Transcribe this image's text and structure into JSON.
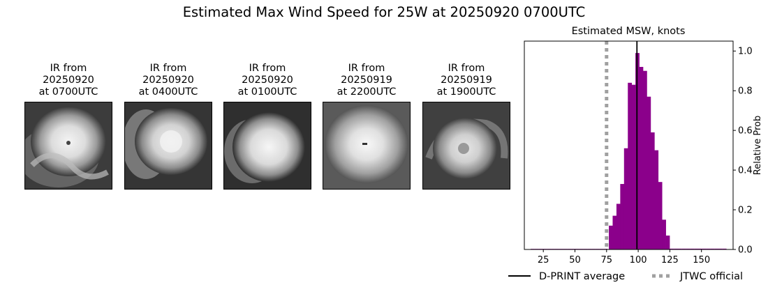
{
  "figure_title": "Estimated Max Wind Speed for 25W at 20250920 0700UTC",
  "ir_panels": [
    {
      "line1": "IR from",
      "line2": "20250920",
      "line3": "at 0700UTC"
    },
    {
      "line1": "IR from",
      "line2": "20250920",
      "line3": "at 0400UTC"
    },
    {
      "line1": "IR from",
      "line2": "20250920",
      "line3": "at 0100UTC"
    },
    {
      "line1": "IR from",
      "line2": "20250919",
      "line3": "at 2200UTC"
    },
    {
      "line1": "IR from",
      "line2": "20250919",
      "line3": "at 1900UTC"
    }
  ],
  "chart_data": {
    "type": "bar",
    "title": "Estimated MSW, knots",
    "xlabel": "",
    "ylabel": "Relative Prob",
    "xlim": [
      10,
      175
    ],
    "ylim": [
      0,
      1.05
    ],
    "xticks": [
      25,
      50,
      75,
      100,
      125,
      150
    ],
    "yticks": [
      0.0,
      0.2,
      0.4,
      0.6,
      0.8,
      1.0
    ],
    "ytick_labels": [
      "0.0",
      "0.2",
      "0.4",
      "0.6",
      "0.8",
      "1.0"
    ],
    "y_axis_side": "right",
    "bar_color": "#8b008b",
    "bin_width": 3.2,
    "bins": [
      {
        "x": 15,
        "y": 0.003
      },
      {
        "x": 18.2,
        "y": 0.003
      },
      {
        "x": 21.4,
        "y": 0.003
      },
      {
        "x": 24.6,
        "y": 0.003
      },
      {
        "x": 27.8,
        "y": 0.003
      },
      {
        "x": 31,
        "y": 0.003
      },
      {
        "x": 34.2,
        "y": 0.003
      },
      {
        "x": 37.4,
        "y": 0.003
      },
      {
        "x": 40.6,
        "y": 0.003
      },
      {
        "x": 43.8,
        "y": 0.003
      },
      {
        "x": 47,
        "y": 0.003
      },
      {
        "x": 50.2,
        "y": 0.003
      },
      {
        "x": 53.4,
        "y": 0.003
      },
      {
        "x": 56.6,
        "y": 0.003
      },
      {
        "x": 59.8,
        "y": 0.003
      },
      {
        "x": 63,
        "y": 0.003
      },
      {
        "x": 66.2,
        "y": 0.003
      },
      {
        "x": 69.4,
        "y": 0.003
      },
      {
        "x": 72.6,
        "y": 0.003
      },
      {
        "x": 76.8,
        "y": 0.12
      },
      {
        "x": 79.8,
        "y": 0.17
      },
      {
        "x": 82.8,
        "y": 0.23
      },
      {
        "x": 85.8,
        "y": 0.33
      },
      {
        "x": 88.8,
        "y": 0.51
      },
      {
        "x": 91.8,
        "y": 0.84
      },
      {
        "x": 94.8,
        "y": 0.83
      },
      {
        "x": 97.8,
        "y": 0.99
      },
      {
        "x": 100.8,
        "y": 0.92
      },
      {
        "x": 103.8,
        "y": 0.9
      },
      {
        "x": 106.8,
        "y": 0.77
      },
      {
        "x": 109.8,
        "y": 0.59
      },
      {
        "x": 112.8,
        "y": 0.5
      },
      {
        "x": 115.8,
        "y": 0.34
      },
      {
        "x": 118.8,
        "y": 0.15
      },
      {
        "x": 121.8,
        "y": 0.07
      },
      {
        "x": 125,
        "y": 0.004
      },
      {
        "x": 128.2,
        "y": 0.004
      },
      {
        "x": 131.4,
        "y": 0.004
      },
      {
        "x": 134.6,
        "y": 0.004
      },
      {
        "x": 137.8,
        "y": 0.004
      },
      {
        "x": 141,
        "y": 0.004
      },
      {
        "x": 144.2,
        "y": 0.004
      },
      {
        "x": 147.4,
        "y": 0.004
      },
      {
        "x": 150.6,
        "y": 0.004
      },
      {
        "x": 153.8,
        "y": 0.004
      },
      {
        "x": 157,
        "y": 0.004
      },
      {
        "x": 160.2,
        "y": 0.004
      },
      {
        "x": 163.4,
        "y": 0.004
      },
      {
        "x": 166.6,
        "y": 0.004
      }
    ],
    "dprint_average": 99,
    "jtwc_official": 75,
    "legend": [
      {
        "label": "D-PRINT average",
        "style": "solid",
        "color": "#000000"
      },
      {
        "label": "JTWC official",
        "style": "dotted",
        "color": "#a0a0a0"
      }
    ],
    "legend_position": "bottom"
  }
}
